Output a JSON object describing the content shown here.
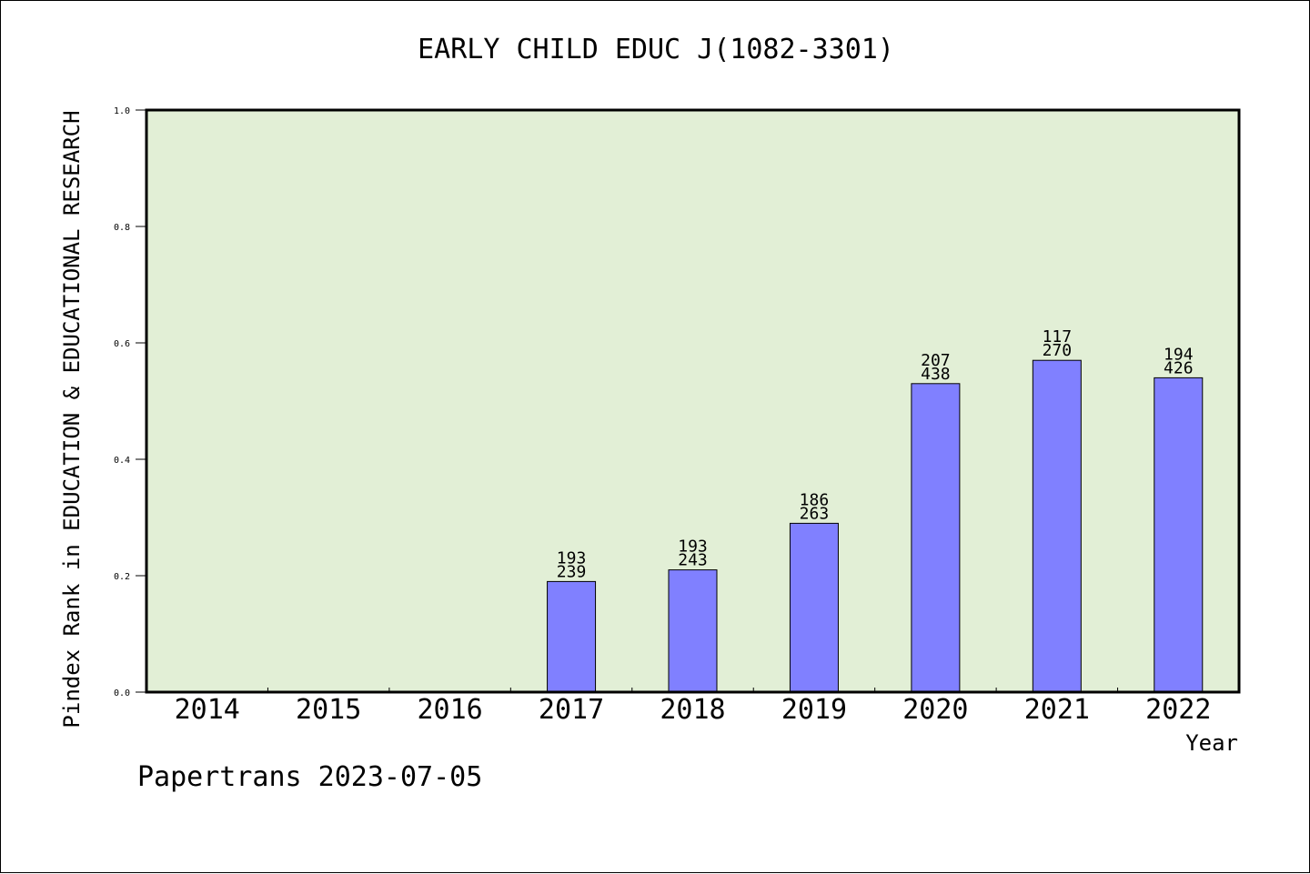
{
  "chart_data": {
    "type": "bar",
    "title": "EARLY CHILD EDUC J(1082-3301)",
    "xlabel": "Year",
    "ylabel": "Pindex Rank in EDUCATION & EDUCATIONAL RESEARCH",
    "categories": [
      "2014",
      "2015",
      "2016",
      "2017",
      "2018",
      "2019",
      "2020",
      "2021",
      "2022"
    ],
    "values": [
      null,
      null,
      null,
      0.19,
      0.21,
      0.29,
      0.53,
      0.57,
      0.54
    ],
    "bar_labels": [
      null,
      null,
      null,
      {
        "rank": "193",
        "total": "239"
      },
      {
        "rank": "193",
        "total": "243"
      },
      {
        "rank": "186",
        "total": "263"
      },
      {
        "rank": "207",
        "total": "438"
      },
      {
        "rank": "117",
        "total": "270"
      },
      {
        "rank": "194",
        "total": "426"
      }
    ],
    "ylim": [
      0,
      1.0
    ],
    "yticks": [
      "0.0",
      "0.2",
      "0.4",
      "0.6",
      "0.8",
      "1.0"
    ],
    "plot_background": "#e2efd6",
    "bar_color": "#8080ff",
    "grid": false
  },
  "footer": {
    "watermark": "Papertrans 2023-07-05"
  }
}
